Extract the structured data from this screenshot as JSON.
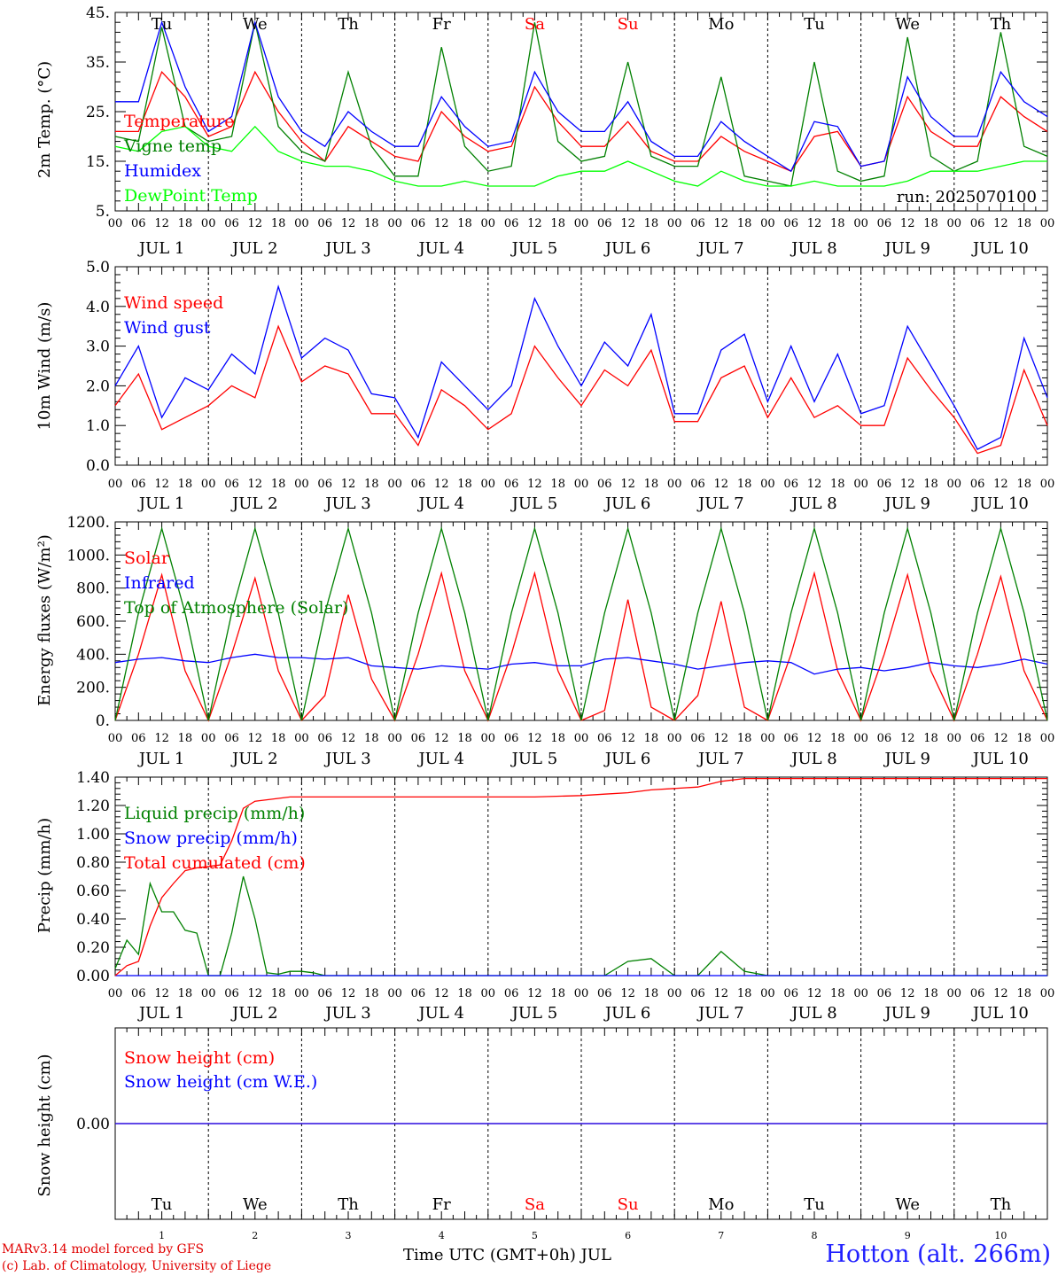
{
  "chart_data": [
    {
      "type": "line",
      "ylabel": "2m Temp. (°C)",
      "ylim": [
        5,
        45
      ],
      "ytick_labels": [
        "5.",
        "15.",
        "25.",
        "35.",
        "45."
      ],
      "day_names": [
        {
          "label": "Tu",
          "color": "#000000"
        },
        {
          "label": "We",
          "color": "#000000"
        },
        {
          "label": "Th",
          "color": "#000000"
        },
        {
          "label": "Fr",
          "color": "#000000"
        },
        {
          "label": "Sa",
          "color": "#ff0000"
        },
        {
          "label": "Su",
          "color": "#ff0000"
        },
        {
          "label": "Mo",
          "color": "#000000"
        },
        {
          "label": "Tu",
          "color": "#000000"
        },
        {
          "label": "We",
          "color": "#000000"
        },
        {
          "label": "Th",
          "color": "#000000"
        }
      ],
      "annotation": "run: 2025070100",
      "x_hours": [
        0,
        6,
        12,
        18,
        24,
        30,
        36,
        42,
        48,
        54,
        60,
        66,
        72,
        78,
        84,
        90,
        96,
        102,
        108,
        114,
        120,
        126,
        132,
        138,
        144,
        150,
        156,
        162,
        168,
        174,
        180,
        186,
        192,
        198,
        204,
        210,
        216,
        222,
        228,
        234,
        240
      ],
      "series": [
        {
          "name": "Temperature",
          "color": "#ff0000",
          "values": [
            21,
            21,
            33,
            28,
            20,
            22,
            33,
            25,
            19,
            15,
            22,
            19,
            16,
            15,
            25,
            20,
            17,
            18,
            30,
            23,
            18,
            18,
            23,
            17,
            15,
            15,
            20,
            17,
            15,
            13,
            20,
            21,
            14,
            15,
            28,
            21,
            18,
            18,
            28,
            24,
            21
          ]
        },
        {
          "name": "Vigne temp",
          "color": "#008000",
          "values": [
            20,
            19,
            42,
            22,
            19,
            20,
            43,
            22,
            17,
            15,
            33,
            18,
            12,
            12,
            38,
            18,
            13,
            14,
            43,
            19,
            15,
            16,
            35,
            16,
            14,
            14,
            32,
            12,
            11,
            10,
            35,
            13,
            11,
            12,
            40,
            16,
            13,
            15,
            41,
            18,
            16
          ]
        },
        {
          "name": "Humidex",
          "color": "#0000ff",
          "values": [
            27,
            27,
            43,
            30,
            21,
            24,
            43,
            28,
            21,
            18,
            25,
            21,
            18,
            18,
            28,
            22,
            18,
            19,
            33,
            25,
            21,
            21,
            27,
            19,
            16,
            16,
            23,
            19,
            16,
            13,
            23,
            22,
            14,
            15,
            32,
            24,
            20,
            20,
            33,
            27,
            24
          ]
        },
        {
          "name": "DewPoint Temp",
          "color": "#00ff00",
          "values": [
            18,
            17,
            21,
            22,
            18,
            17,
            22,
            17,
            15,
            14,
            14,
            13,
            11,
            10,
            10,
            11,
            10,
            10,
            10,
            12,
            13,
            13,
            15,
            13,
            11,
            10,
            13,
            11,
            10,
            10,
            11,
            10,
            10,
            10,
            11,
            13,
            13,
            13,
            14,
            15,
            15
          ]
        }
      ]
    },
    {
      "type": "line",
      "ylabel": "10m Wind (m/s)",
      "ylim": [
        0,
        5
      ],
      "ytick_labels": [
        "0.0",
        "1.0",
        "2.0",
        "3.0",
        "4.0",
        "5.0"
      ],
      "x_hours": [
        0,
        6,
        12,
        18,
        24,
        30,
        36,
        42,
        48,
        54,
        60,
        66,
        72,
        78,
        84,
        90,
        96,
        102,
        108,
        114,
        120,
        126,
        132,
        138,
        144,
        150,
        156,
        162,
        168,
        174,
        180,
        186,
        192,
        198,
        204,
        210,
        216,
        222,
        228,
        234,
        240
      ],
      "series": [
        {
          "name": "Wind speed",
          "color": "#ff0000",
          "values": [
            1.5,
            2.3,
            0.9,
            1.2,
            1.5,
            2.0,
            1.7,
            3.5,
            2.1,
            2.5,
            2.3,
            1.3,
            1.3,
            0.5,
            1.9,
            1.5,
            0.9,
            1.3,
            3.0,
            2.2,
            1.5,
            2.4,
            2.0,
            2.9,
            1.1,
            1.1,
            2.2,
            2.5,
            1.2,
            2.2,
            1.2,
            1.5,
            1.0,
            1.0,
            2.7,
            1.9,
            1.2,
            0.3,
            0.5,
            2.4,
            1.0
          ]
        },
        {
          "name": "Wind gust",
          "color": "#0000ff",
          "values": [
            2.0,
            3.0,
            1.2,
            2.2,
            1.9,
            2.8,
            2.3,
            4.5,
            2.7,
            3.2,
            2.9,
            1.8,
            1.7,
            0.7,
            2.6,
            2.0,
            1.4,
            2.0,
            4.2,
            3.0,
            2.0,
            3.1,
            2.5,
            3.8,
            1.3,
            1.3,
            2.9,
            3.3,
            1.6,
            3.0,
            1.6,
            2.8,
            1.3,
            1.5,
            3.5,
            2.5,
            1.5,
            0.4,
            0.7,
            3.2,
            1.7
          ]
        }
      ]
    },
    {
      "type": "line",
      "ylabel": "Energy fluxes (W/m²)",
      "ylim": [
        0,
        1200
      ],
      "ytick_labels": [
        "0.",
        "200.",
        "400.",
        "600.",
        "800.",
        "1000.",
        "1200."
      ],
      "x_hours": [
        0,
        6,
        12,
        18,
        24,
        30,
        36,
        42,
        48,
        54,
        60,
        66,
        72,
        78,
        84,
        90,
        96,
        102,
        108,
        114,
        120,
        126,
        132,
        138,
        144,
        150,
        156,
        162,
        168,
        174,
        180,
        186,
        192,
        198,
        204,
        210,
        216,
        222,
        228,
        234,
        240
      ],
      "series": [
        {
          "name": "Solar",
          "color": "#ff0000",
          "values": [
            0,
            400,
            880,
            300,
            0,
            400,
            860,
            300,
            0,
            150,
            760,
            250,
            0,
            400,
            890,
            300,
            0,
            400,
            890,
            300,
            0,
            60,
            730,
            80,
            0,
            150,
            720,
            80,
            0,
            400,
            890,
            300,
            0,
            400,
            880,
            300,
            0,
            400,
            870,
            300,
            0
          ]
        },
        {
          "name": "Infrared",
          "color": "#0000ff",
          "values": [
            350,
            370,
            380,
            360,
            350,
            380,
            400,
            380,
            380,
            370,
            380,
            330,
            320,
            310,
            330,
            320,
            310,
            340,
            350,
            330,
            330,
            370,
            380,
            360,
            340,
            310,
            330,
            350,
            360,
            350,
            280,
            310,
            320,
            300,
            320,
            350,
            330,
            320,
            340,
            370,
            340
          ]
        },
        {
          "name": "Top of Atmosphere (Solar)",
          "color": "#008000",
          "values": [
            0,
            650,
            1160,
            650,
            0,
            650,
            1160,
            650,
            0,
            650,
            1160,
            650,
            0,
            650,
            1160,
            650,
            0,
            650,
            1160,
            650,
            0,
            650,
            1160,
            650,
            0,
            650,
            1160,
            650,
            0,
            650,
            1160,
            650,
            0,
            650,
            1160,
            650,
            0,
            650,
            1160,
            650,
            0
          ]
        }
      ]
    },
    {
      "type": "line",
      "ylabel": "Precip (mm/h)",
      "ylim": [
        0,
        1.4
      ],
      "ytick_labels": [
        "0.00",
        "0.20",
        "0.40",
        "0.60",
        "0.80",
        "1.00",
        "1.20",
        "1.40"
      ],
      "x_hours": [
        0,
        3,
        6,
        9,
        12,
        15,
        18,
        21,
        24,
        27,
        30,
        33,
        36,
        39,
        42,
        45,
        48,
        51,
        54,
        60,
        66,
        72,
        84,
        96,
        108,
        120,
        126,
        132,
        138,
        144,
        150,
        156,
        162,
        168,
        180,
        192,
        204,
        216,
        228,
        240
      ],
      "series": [
        {
          "name": "Liquid precip (mm/h)",
          "color": "#008000",
          "values": [
            0.05,
            0.25,
            0.15,
            0.65,
            0.45,
            0.45,
            0.32,
            0.3,
            0.0,
            0.0,
            0.3,
            0.7,
            0.4,
            0.02,
            0.01,
            0.03,
            0.03,
            0.02,
            0.0,
            0.0,
            0.0,
            0.0,
            0.0,
            0.0,
            0.0,
            0.0,
            0.0,
            0.1,
            0.12,
            0.0,
            0.0,
            0.17,
            0.03,
            0.0,
            0.0,
            0.0,
            0.0,
            0.0,
            0.0,
            0.0
          ]
        },
        {
          "name": "Snow precip (mm/h)",
          "color": "#0000ff",
          "values": [
            0,
            0,
            0,
            0,
            0,
            0,
            0,
            0,
            0,
            0,
            0,
            0,
            0,
            0,
            0,
            0,
            0,
            0,
            0,
            0,
            0,
            0,
            0,
            0,
            0,
            0,
            0,
            0,
            0,
            0,
            0,
            0,
            0,
            0,
            0,
            0,
            0,
            0,
            0,
            0
          ]
        },
        {
          "name": "Total cumulated (cm)",
          "color": "#ff0000",
          "values": [
            0.0,
            0.07,
            0.1,
            0.35,
            0.55,
            0.65,
            0.74,
            0.76,
            0.77,
            0.78,
            0.95,
            1.18,
            1.23,
            1.24,
            1.25,
            1.26,
            1.26,
            1.26,
            1.26,
            1.26,
            1.26,
            1.26,
            1.26,
            1.26,
            1.26,
            1.27,
            1.28,
            1.29,
            1.31,
            1.32,
            1.33,
            1.37,
            1.39,
            1.39,
            1.39,
            1.39,
            1.39,
            1.39,
            1.39,
            1.39
          ]
        }
      ]
    },
    {
      "type": "line",
      "ylabel": "Snow height (cm)",
      "ylim": [
        -1,
        1
      ],
      "ytick_labels": [
        "0.00"
      ],
      "x_hours": [
        0,
        240
      ],
      "series": [
        {
          "name": "Snow height (cm)",
          "color": "#ff0000",
          "values": [
            0,
            0
          ]
        },
        {
          "name": "Snow height (cm W.E.)",
          "color": "#0000ff",
          "values": [
            0,
            0
          ]
        }
      ]
    }
  ],
  "x_axis": {
    "hour_labels": [
      "00",
      "06",
      "12",
      "18"
    ],
    "final_hour_label": "00",
    "date_labels": [
      "JUL  1",
      "JUL  2",
      "JUL  3",
      "JUL  4",
      "JUL  5",
      "JUL  6",
      "JUL  7",
      "JUL  8",
      "JUL  9",
      "JUL 10"
    ],
    "day_numbers": [
      "1",
      "2",
      "3",
      "4",
      "5",
      "6",
      "7",
      "8",
      "9",
      "10"
    ],
    "title": "Time UTC (GMT+0h) JUL"
  },
  "footer": {
    "model_line": "MARv3.14 model forced by GFS",
    "copyright_line": "(c) Lab. of Climatology, University of Liege",
    "station": "Hotton (alt. 266m)"
  }
}
